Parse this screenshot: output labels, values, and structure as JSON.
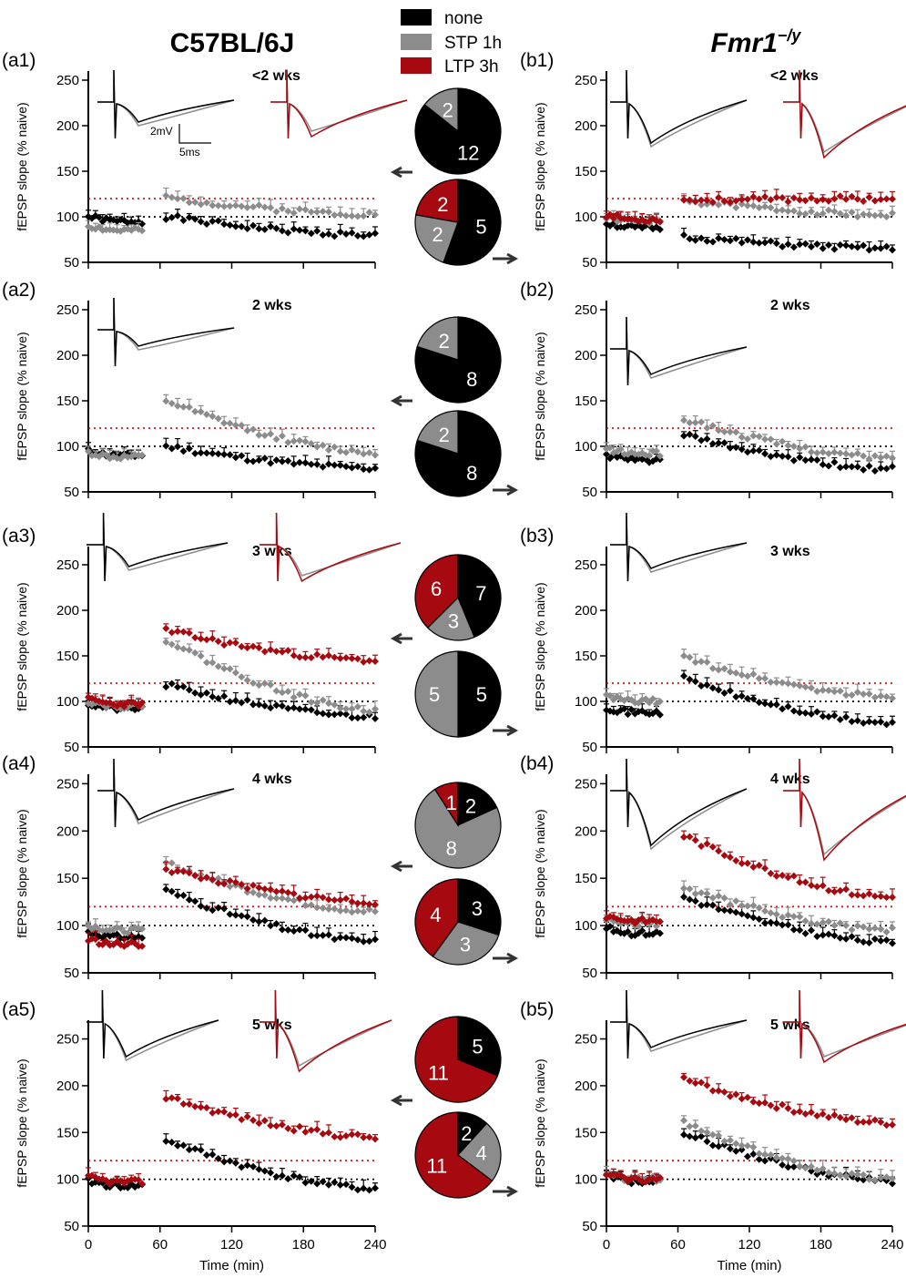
{
  "titles": {
    "left": "C57BL/6J",
    "right": "Fmr1",
    "right_superscript": "−/y"
  },
  "legend": [
    {
      "label": "none",
      "color": "#000000"
    },
    {
      "label": "STP 1h",
      "color": "#8c8c8c"
    },
    {
      "label": "LTP 3h",
      "color": "#a6090f"
    }
  ],
  "colors": {
    "none": "#000000",
    "stp": "#8c8c8c",
    "ltp": "#a6090f",
    "threshold": "#e01010"
  },
  "scale_bar": {
    "voltage": "2mV",
    "time": "5ms"
  },
  "icons": {
    "arrow_left": "arrow-left-icon",
    "arrow_right": "arrow-right-icon"
  },
  "chart_data": [
    {
      "id": "a1",
      "label": "(a1)",
      "age": "<2 wks",
      "type": "scatter",
      "ylabel": "fEPSP slope (% naive)",
      "ylim": [
        50,
        260
      ],
      "yticks": [
        50,
        100,
        150,
        200,
        250
      ],
      "xlim": [
        0,
        240
      ],
      "xticks": [
        0,
        60,
        120,
        180,
        240
      ],
      "xlabel": "",
      "baseline": 100,
      "threshold": 120,
      "series": [
        {
          "name": "none",
          "color": "#000000",
          "base_value": 95,
          "start": 100,
          "end": 80
        },
        {
          "name": "STP 1h",
          "color": "#8c8c8c",
          "base_value": 85,
          "start": 121,
          "end": 103
        }
      ]
    },
    {
      "id": "a2",
      "label": "(a2)",
      "age": "2 wks",
      "type": "scatter",
      "ylabel": "fEPSP slope (% naive)",
      "ylim": [
        50,
        260
      ],
      "yticks": [
        50,
        100,
        150,
        200,
        250
      ],
      "xlim": [
        0,
        240
      ],
      "xticks": [
        0,
        60,
        120,
        180,
        240
      ],
      "xlabel": "",
      "baseline": 100,
      "threshold": 120,
      "series": [
        {
          "name": "none",
          "color": "#000000",
          "base_value": 90,
          "start": 100,
          "end": 76
        },
        {
          "name": "STP 1h",
          "color": "#8c8c8c",
          "base_value": 88,
          "start": 150,
          "end": 93
        }
      ]
    },
    {
      "id": "a3",
      "label": "(a3)",
      "age": "3 wks",
      "type": "scatter",
      "ylabel": "fEPSP slope (% naive)",
      "ylim": [
        50,
        270
      ],
      "yticks": [
        50,
        100,
        150,
        200,
        250
      ],
      "xlim": [
        0,
        240
      ],
      "xticks": [
        0,
        60,
        120,
        180,
        240
      ],
      "xlabel": "",
      "baseline": 100,
      "threshold": 120,
      "series": [
        {
          "name": "none",
          "color": "#000000",
          "base_value": 92,
          "start": 118,
          "end": 83
        },
        {
          "name": "STP 1h",
          "color": "#8c8c8c",
          "base_value": 95,
          "start": 168,
          "end": 90
        },
        {
          "name": "LTP 3h",
          "color": "#a6090f",
          "base_value": 97,
          "start": 178,
          "end": 145
        }
      ]
    },
    {
      "id": "a4",
      "label": "(a4)",
      "age": "4 wks",
      "type": "scatter",
      "ylabel": "fEPSP slope (% naive)",
      "ylim": [
        50,
        260
      ],
      "yticks": [
        50,
        100,
        150,
        200,
        250
      ],
      "xlim": [
        0,
        240
      ],
      "xticks": [
        0,
        60,
        120,
        180,
        240
      ],
      "xlabel": "",
      "baseline": 100,
      "threshold": 120,
      "series": [
        {
          "name": "none",
          "color": "#000000",
          "base_value": 88,
          "start": 137,
          "end": 83
        },
        {
          "name": "STP 1h",
          "color": "#8c8c8c",
          "base_value": 95,
          "start": 166,
          "end": 115
        },
        {
          "name": "LTP 3h",
          "color": "#a6090f",
          "base_value": 80,
          "start": 160,
          "end": 125
        }
      ]
    },
    {
      "id": "a5",
      "label": "(a5)",
      "age": "5 wks",
      "type": "scatter",
      "ylabel": "fEPSP slope (% naive)",
      "ylim": [
        50,
        270
      ],
      "yticks": [
        50,
        100,
        150,
        200,
        250
      ],
      "xlim": [
        0,
        240
      ],
      "xticks": [
        0,
        60,
        120,
        180,
        240
      ],
      "xlabel": "Time (min)",
      "baseline": 100,
      "threshold": 120,
      "series": [
        {
          "name": "none",
          "color": "#000000",
          "base_value": 93,
          "start": 142,
          "end": 90
        },
        {
          "name": "LTP 3h",
          "color": "#a6090f",
          "base_value": 97,
          "start": 188,
          "end": 145
        }
      ]
    },
    {
      "id": "b1",
      "label": "(b1)",
      "age": "<2 wks",
      "type": "scatter",
      "ylabel": "fEPSP slope (% naive)",
      "ylim": [
        50,
        260
      ],
      "yticks": [
        50,
        100,
        150,
        200,
        250
      ],
      "xlim": [
        0,
        240
      ],
      "xticks": [
        0,
        60,
        120,
        180,
        240
      ],
      "xlabel": "",
      "baseline": 100,
      "threshold": 120,
      "series": [
        {
          "name": "none",
          "color": "#000000",
          "base_value": 88,
          "start": 78,
          "end": 65
        },
        {
          "name": "STP 1h",
          "color": "#8c8c8c",
          "base_value": 95,
          "start": 118,
          "end": 102
        },
        {
          "name": "LTP 3h",
          "color": "#a6090f",
          "base_value": 97,
          "start": 118,
          "end": 120
        }
      ]
    },
    {
      "id": "b2",
      "label": "(b2)",
      "age": "2 wks",
      "type": "scatter",
      "ylabel": "fEPSP slope (% naive)",
      "ylim": [
        50,
        260
      ],
      "yticks": [
        50,
        100,
        150,
        200,
        250
      ],
      "xlim": [
        0,
        240
      ],
      "xticks": [
        0,
        60,
        120,
        180,
        240
      ],
      "xlabel": "",
      "baseline": 100,
      "threshold": 120,
      "series": [
        {
          "name": "none",
          "color": "#000000",
          "base_value": 85,
          "start": 112,
          "end": 75
        },
        {
          "name": "STP 1h",
          "color": "#8c8c8c",
          "base_value": 92,
          "start": 130,
          "end": 87
        }
      ]
    },
    {
      "id": "b3",
      "label": "(b3)",
      "age": "3 wks",
      "type": "scatter",
      "ylabel": "fEPSP slope (% naive)",
      "ylim": [
        50,
        270
      ],
      "yticks": [
        50,
        100,
        150,
        200,
        250
      ],
      "xlim": [
        0,
        240
      ],
      "xticks": [
        0,
        60,
        120,
        180,
        240
      ],
      "xlabel": "",
      "baseline": 100,
      "threshold": 120,
      "series": [
        {
          "name": "none",
          "color": "#000000",
          "base_value": 88,
          "start": 125,
          "end": 76
        },
        {
          "name": "STP 1h",
          "color": "#8c8c8c",
          "base_value": 100,
          "start": 148,
          "end": 105
        }
      ]
    },
    {
      "id": "b4",
      "label": "(b4)",
      "age": "4 wks",
      "type": "scatter",
      "ylabel": "fEPSP slope (% naive)",
      "ylim": [
        50,
        260
      ],
      "yticks": [
        50,
        100,
        150,
        200,
        250
      ],
      "xlim": [
        0,
        240
      ],
      "xticks": [
        0,
        60,
        120,
        180,
        240
      ],
      "xlabel": "",
      "baseline": 100,
      "threshold": 120,
      "series": [
        {
          "name": "none",
          "color": "#000000",
          "base_value": 92,
          "start": 130,
          "end": 82
        },
        {
          "name": "STP 1h",
          "color": "#8c8c8c",
          "base_value": 102,
          "start": 140,
          "end": 95
        },
        {
          "name": "LTP 3h",
          "color": "#a6090f",
          "base_value": 105,
          "start": 195,
          "end": 130
        }
      ]
    },
    {
      "id": "b5",
      "label": "(b5)",
      "age": "5 wks",
      "type": "scatter",
      "ylabel": "fEPSP slope (% naive)",
      "ylim": [
        50,
        270
      ],
      "yticks": [
        50,
        100,
        150,
        200,
        250
      ],
      "xlim": [
        0,
        240
      ],
      "xticks": [
        0,
        60,
        120,
        180,
        240
      ],
      "xlabel": "Time (min)",
      "baseline": 100,
      "threshold": 120,
      "series": [
        {
          "name": "none",
          "color": "#000000",
          "base_value": 98,
          "start": 150,
          "end": 98
        },
        {
          "name": "STP 1h",
          "color": "#8c8c8c",
          "base_value": 100,
          "start": 160,
          "end": 100
        },
        {
          "name": "LTP 3h",
          "color": "#a6090f",
          "base_value": 100,
          "start": 207,
          "end": 160
        }
      ]
    }
  ],
  "pies": [
    {
      "id": "p1a",
      "arrow": "left",
      "slices": [
        {
          "name": "STP 1h",
          "value": 2
        },
        {
          "name": "none",
          "value": 12
        }
      ]
    },
    {
      "id": "p1b",
      "arrow": "right",
      "slices": [
        {
          "name": "LTP 3h",
          "value": 2
        },
        {
          "name": "STP 1h",
          "value": 2
        },
        {
          "name": "none",
          "value": 5
        }
      ]
    },
    {
      "id": "p2a",
      "arrow": "left",
      "slices": [
        {
          "name": "STP 1h",
          "value": 2
        },
        {
          "name": "none",
          "value": 8
        }
      ]
    },
    {
      "id": "p2b",
      "arrow": "right",
      "slices": [
        {
          "name": "STP 1h",
          "value": 2
        },
        {
          "name": "none",
          "value": 8
        }
      ]
    },
    {
      "id": "p3a",
      "arrow": "left",
      "slices": [
        {
          "name": "LTP 3h",
          "value": 6
        },
        {
          "name": "STP 1h",
          "value": 3
        },
        {
          "name": "none",
          "value": 7
        }
      ]
    },
    {
      "id": "p3b",
      "arrow": "right",
      "slices": [
        {
          "name": "STP 1h",
          "value": 5
        },
        {
          "name": "none",
          "value": 5
        }
      ]
    },
    {
      "id": "p4a",
      "arrow": "left",
      "slices": [
        {
          "name": "LTP 3h",
          "value": 1
        },
        {
          "name": "STP 1h",
          "value": 8
        },
        {
          "name": "none",
          "value": 2
        }
      ]
    },
    {
      "id": "p4b",
      "arrow": "right",
      "slices": [
        {
          "name": "LTP 3h",
          "value": 4
        },
        {
          "name": "STP 1h",
          "value": 3
        },
        {
          "name": "none",
          "value": 3
        }
      ]
    },
    {
      "id": "p5a",
      "arrow": "left",
      "slices": [
        {
          "name": "LTP 3h",
          "value": 11
        },
        {
          "name": "none",
          "value": 5
        }
      ]
    },
    {
      "id": "p5b",
      "arrow": "right",
      "slices": [
        {
          "name": "LTP 3h",
          "value": 11
        },
        {
          "name": "STP 1h",
          "value": 4
        },
        {
          "name": "none",
          "value": 2
        }
      ]
    }
  ]
}
